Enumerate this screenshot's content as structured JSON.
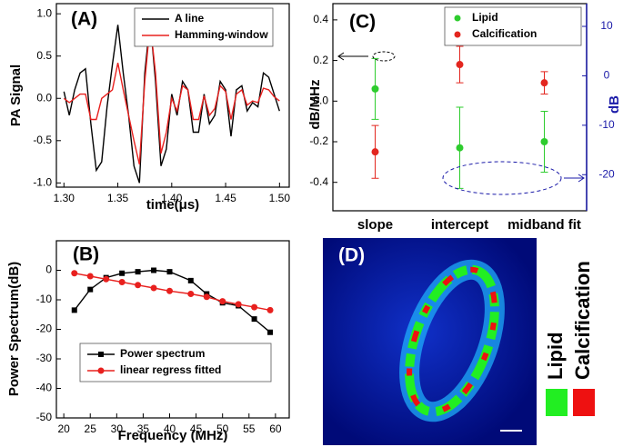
{
  "chart_data": [
    {
      "type": "line",
      "title": "(A)",
      "x_label": "time(μs)",
      "y_label": "PA Signal",
      "x": [
        1.3,
        1.305,
        1.31,
        1.315,
        1.32,
        1.325,
        1.33,
        1.335,
        1.34,
        1.345,
        1.35,
        1.355,
        1.36,
        1.365,
        1.37,
        1.375,
        1.38,
        1.385,
        1.39,
        1.395,
        1.4,
        1.405,
        1.41,
        1.415,
        1.42,
        1.425,
        1.43,
        1.435,
        1.44,
        1.445,
        1.45,
        1.455,
        1.46,
        1.465,
        1.47,
        1.475,
        1.48,
        1.485,
        1.49,
        1.495,
        1.5
      ],
      "series": [
        {
          "name": "A line",
          "color": "#000000",
          "values": [
            0.08,
            -0.2,
            0.1,
            0.3,
            0.35,
            -0.3,
            -0.85,
            -0.75,
            -0.1,
            0.4,
            0.87,
            0.3,
            -0.2,
            -0.8,
            -1.0,
            0.3,
            0.92,
            0.2,
            -0.8,
            -0.6,
            0.05,
            -0.2,
            0.2,
            0.1,
            -0.4,
            -0.4,
            0.05,
            -0.3,
            -0.2,
            0.2,
            0.1,
            -0.45,
            0.1,
            0.15,
            -0.15,
            -0.05,
            -0.1,
            0.3,
            0.25,
            0.05,
            -0.15
          ]
        },
        {
          "name": "Hamming-window",
          "color": "#e8201e",
          "values": [
            0.0,
            -0.05,
            0.0,
            0.05,
            0.05,
            -0.25,
            -0.25,
            0.0,
            0.05,
            0.1,
            0.42,
            0.1,
            -0.2,
            -0.5,
            -0.78,
            0.2,
            0.88,
            0.3,
            -0.65,
            -0.4,
            0.0,
            -0.15,
            0.15,
            0.1,
            -0.25,
            -0.25,
            0.03,
            -0.2,
            -0.12,
            0.15,
            0.08,
            -0.25,
            0.05,
            0.1,
            -0.08,
            -0.03,
            -0.05,
            0.12,
            0.1,
            0.02,
            -0.03
          ]
        }
      ],
      "xlim": [
        1.293,
        1.509
      ],
      "ylim": [
        -1.05,
        1.12
      ],
      "xticks": [
        {
          "value": 1.3,
          "label": "1.30"
        },
        1.35,
        {
          "value": 1.4,
          "label": "1.40"
        },
        1.45,
        {
          "value": 1.5,
          "label": "1.50"
        }
      ],
      "yticks": [
        {
          "value": -1,
          "label": "-1.0"
        },
        -0.5,
        {
          "value": 0,
          "label": "0.0"
        },
        0.5,
        {
          "value": 1,
          "label": "1.0"
        }
      ],
      "legend": "upper right"
    },
    {
      "type": "line",
      "title": "(B)",
      "x_label": "Frequency (MHz)",
      "y_label": "Power Spectrum(dB)",
      "x": [
        22,
        25,
        28,
        31,
        34,
        37,
        40,
        44,
        47,
        50,
        53,
        56,
        59
      ],
      "series": [
        {
          "name": "Power spectrum",
          "color": "#000000",
          "marker": "square",
          "values": [
            -13.5,
            -6.5,
            -2.5,
            -1,
            -0.5,
            0,
            -0.5,
            -3.5,
            -8,
            -11,
            -12,
            -16.5,
            -21
          ]
        },
        {
          "name": "linear regress fitted",
          "color": "#e8201e",
          "marker": "circle",
          "values": [
            -1,
            -2,
            -3,
            -4,
            -5,
            -6,
            -7,
            -8,
            -9,
            -10.5,
            -11.5,
            -12.5,
            -13.5
          ]
        }
      ],
      "xlim": [
        18.6,
        62.6
      ],
      "ylim": [
        -50,
        10
      ],
      "xticks": [
        20,
        25,
        30,
        35,
        40,
        45,
        50,
        55,
        60
      ],
      "yticks": [
        -50,
        -40,
        -30,
        -20,
        -10,
        0
      ],
      "legend": "lower left"
    },
    {
      "type": "errorbar",
      "title": "(C)",
      "y_label": "dB/MHz",
      "y2_label": "dB",
      "categories": [
        "slope",
        "intercept",
        "midband fit"
      ],
      "series": [
        {
          "name": "Lipid",
          "color": "#2ecc2e",
          "values": [
            0.06,
            -0.23,
            -0.2
          ],
          "errors": [
            0.15,
            0.2,
            0.15
          ]
        },
        {
          "name": "Calcification",
          "color": "#e3261f",
          "values": [
            -0.25,
            0.18,
            0.09
          ],
          "errors": [
            0.13,
            0.09,
            0.055
          ]
        }
      ],
      "ylim": [
        -0.54,
        0.48
      ],
      "yticks": [
        -0.4,
        -0.2,
        {
          "value": 0,
          "label": "0.0"
        },
        0.2,
        0.4
      ],
      "y2lim": [
        -27.3,
        14.6
      ],
      "y2ticks": [
        -20,
        -10,
        0,
        10
      ],
      "y2_color": "#1a1aa8",
      "legend": "upper right"
    }
  ],
  "image_panel": {
    "title": "(D)",
    "legend": [
      {
        "name": "Lipid",
        "color": "#22ee22"
      },
      {
        "name": "Calcification",
        "color": "#ee1111"
      }
    ]
  }
}
